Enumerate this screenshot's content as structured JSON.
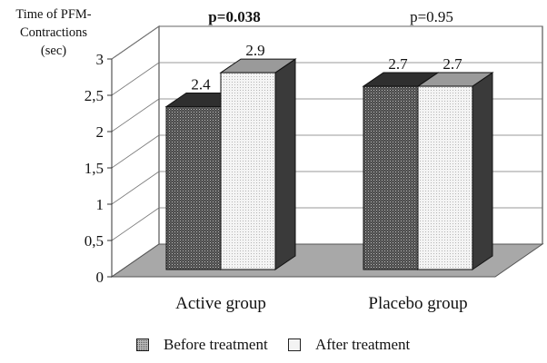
{
  "chart_data": {
    "type": "bar",
    "ylabel_lines": [
      "Time of PFM-",
      "Contractions",
      "(sec)"
    ],
    "categories": [
      "Active group",
      "Placebo group"
    ],
    "series": [
      {
        "name": "Before treatment",
        "values": [
          2.4,
          2.7
        ]
      },
      {
        "name": "After treatment",
        "values": [
          2.9,
          2.7
        ]
      }
    ],
    "data_labels": [
      [
        "2.4",
        "2.9"
      ],
      [
        "2.7",
        "2.7"
      ]
    ],
    "annotations": [
      "p=0.038",
      "p=0.95"
    ],
    "yticks": [
      "0",
      "0,5",
      "1",
      "1,5",
      "2",
      "2,5",
      "3"
    ],
    "ylim": [
      0,
      3
    ],
    "grid": true,
    "legend": "bottom",
    "style": "3d-bar",
    "colors": {
      "before": "#555555",
      "after": "#f2f2f2",
      "floor": "#a8a8a8"
    }
  }
}
